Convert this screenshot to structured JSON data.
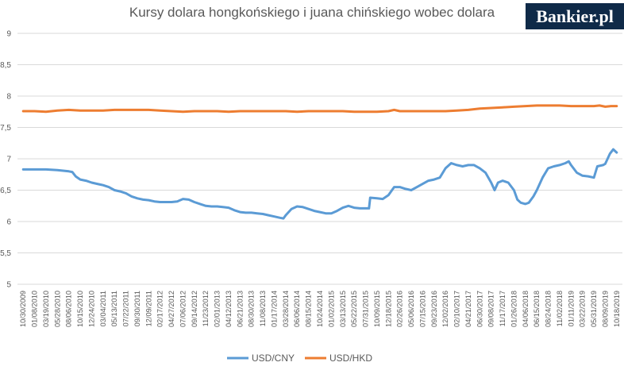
{
  "chart_data": {
    "type": "line",
    "title": "Kursy dolara hongkońskiego  i juana chińskiego wobec dolara",
    "xlabel": "",
    "ylabel": "",
    "ylim": [
      5,
      9
    ],
    "yticks": [
      "5",
      "5,5",
      "6",
      "6,5",
      "7",
      "7,5",
      "8",
      "8,5",
      "9"
    ],
    "grid": "horizontal",
    "legend": "bottom",
    "x_tick_labels": [
      "10/30/2009",
      "01/08/2010",
      "03/19/2010",
      "05/28/2010",
      "08/06/2010",
      "10/15/2010",
      "12/24/2010",
      "03/04/2011",
      "05/13/2011",
      "07/22/2011",
      "09/30/2011",
      "12/09/2011",
      "02/17/2012",
      "04/27/2012",
      "07/06/2012",
      "09/14/2012",
      "11/23/2012",
      "02/01/2013",
      "04/12/2013",
      "06/21/2013",
      "08/30/2013",
      "11/08/2013",
      "01/17/2014",
      "03/28/2014",
      "06/06/2014",
      "08/15/2014",
      "10/24/2014",
      "01/02/2015",
      "03/13/2015",
      "05/22/2015",
      "07/31/2015",
      "10/09/2015",
      "12/18/2015",
      "02/26/2016",
      "05/06/2016",
      "07/15/2016",
      "09/23/2016",
      "12/02/2016",
      "02/10/2017",
      "04/21/2017",
      "06/30/2017",
      "09/08/2017",
      "11/17/2017",
      "01/26/2018",
      "04/06/2018",
      "06/15/2018",
      "08/24/2018",
      "11/02/2018",
      "01/11/2019",
      "03/22/2019",
      "05/31/2019",
      "08/09/2019",
      "10/18/2019"
    ],
    "series": [
      {
        "name": "USD/CNY",
        "color": "#5b9bd5",
        "points": [
          [
            0,
            6.83
          ],
          [
            1,
            6.83
          ],
          [
            2,
            6.83
          ],
          [
            3,
            6.82
          ],
          [
            4,
            6.8
          ],
          [
            4.3,
            6.79
          ],
          [
            4.6,
            6.72
          ],
          [
            5,
            6.67
          ],
          [
            5.5,
            6.65
          ],
          [
            6,
            6.62
          ],
          [
            6.5,
            6.6
          ],
          [
            7,
            6.58
          ],
          [
            7.5,
            6.55
          ],
          [
            8,
            6.5
          ],
          [
            8.5,
            6.48
          ],
          [
            9,
            6.45
          ],
          [
            9.5,
            6.4
          ],
          [
            10,
            6.37
          ],
          [
            10.5,
            6.35
          ],
          [
            11,
            6.34
          ],
          [
            11.5,
            6.32
          ],
          [
            12,
            6.31
          ],
          [
            12.5,
            6.31
          ],
          [
            13,
            6.31
          ],
          [
            13.5,
            6.32
          ],
          [
            14,
            6.36
          ],
          [
            14.5,
            6.35
          ],
          [
            15,
            6.31
          ],
          [
            15.5,
            6.28
          ],
          [
            16,
            6.25
          ],
          [
            16.5,
            6.24
          ],
          [
            17,
            6.24
          ],
          [
            17.5,
            6.23
          ],
          [
            18,
            6.22
          ],
          [
            18.5,
            6.18
          ],
          [
            19,
            6.15
          ],
          [
            19.5,
            6.14
          ],
          [
            20,
            6.14
          ],
          [
            20.5,
            6.13
          ],
          [
            21,
            6.12
          ],
          [
            21.5,
            6.1
          ],
          [
            22,
            6.08
          ],
          [
            22.5,
            6.06
          ],
          [
            22.8,
            6.05
          ],
          [
            23,
            6.1
          ],
          [
            23.5,
            6.2
          ],
          [
            24,
            6.24
          ],
          [
            24.5,
            6.23
          ],
          [
            25,
            6.2
          ],
          [
            25.5,
            6.17
          ],
          [
            26,
            6.15
          ],
          [
            26.5,
            6.13
          ],
          [
            27,
            6.13
          ],
          [
            27.5,
            6.17
          ],
          [
            28,
            6.22
          ],
          [
            28.5,
            6.25
          ],
          [
            29,
            6.22
          ],
          [
            29.5,
            6.21
          ],
          [
            30,
            6.21
          ],
          [
            30.3,
            6.21
          ],
          [
            30.4,
            6.38
          ],
          [
            31,
            6.37
          ],
          [
            31.5,
            6.36
          ],
          [
            32,
            6.42
          ],
          [
            32.5,
            6.55
          ],
          [
            33,
            6.55
          ],
          [
            33.5,
            6.52
          ],
          [
            34,
            6.5
          ],
          [
            34.5,
            6.55
          ],
          [
            35,
            6.6
          ],
          [
            35.5,
            6.65
          ],
          [
            36,
            6.67
          ],
          [
            36.5,
            6.7
          ],
          [
            37,
            6.85
          ],
          [
            37.5,
            6.93
          ],
          [
            38,
            6.9
          ],
          [
            38.5,
            6.88
          ],
          [
            39,
            6.9
          ],
          [
            39.5,
            6.9
          ],
          [
            40,
            6.85
          ],
          [
            40.5,
            6.78
          ],
          [
            41,
            6.62
          ],
          [
            41.3,
            6.5
          ],
          [
            41.6,
            6.62
          ],
          [
            42,
            6.65
          ],
          [
            42.5,
            6.62
          ],
          [
            43,
            6.5
          ],
          [
            43.3,
            6.35
          ],
          [
            43.6,
            6.3
          ],
          [
            44,
            6.28
          ],
          [
            44.3,
            6.3
          ],
          [
            44.7,
            6.4
          ],
          [
            45,
            6.5
          ],
          [
            45.5,
            6.7
          ],
          [
            46,
            6.85
          ],
          [
            46.5,
            6.88
          ],
          [
            47,
            6.9
          ],
          [
            47.5,
            6.93
          ],
          [
            47.8,
            6.96
          ],
          [
            48,
            6.9
          ],
          [
            48.5,
            6.78
          ],
          [
            49,
            6.73
          ],
          [
            49.5,
            6.72
          ],
          [
            50,
            6.7
          ],
          [
            50.3,
            6.88
          ],
          [
            50.8,
            6.9
          ],
          [
            51,
            6.92
          ],
          [
            51.4,
            7.08
          ],
          [
            51.7,
            7.15
          ],
          [
            52,
            7.1
          ]
        ]
      },
      {
        "name": "USD/HKD",
        "color": "#ed7d31",
        "points": [
          [
            0,
            7.76
          ],
          [
            1,
            7.76
          ],
          [
            2,
            7.75
          ],
          [
            3,
            7.77
          ],
          [
            4,
            7.78
          ],
          [
            5,
            7.77
          ],
          [
            6,
            7.77
          ],
          [
            7,
            7.77
          ],
          [
            8,
            7.78
          ],
          [
            9,
            7.78
          ],
          [
            10,
            7.78
          ],
          [
            11,
            7.78
          ],
          [
            12,
            7.77
          ],
          [
            13,
            7.76
          ],
          [
            14,
            7.75
          ],
          [
            15,
            7.76
          ],
          [
            16,
            7.76
          ],
          [
            17,
            7.76
          ],
          [
            18,
            7.75
          ],
          [
            19,
            7.76
          ],
          [
            20,
            7.76
          ],
          [
            21,
            7.76
          ],
          [
            22,
            7.76
          ],
          [
            23,
            7.76
          ],
          [
            24,
            7.75
          ],
          [
            25,
            7.76
          ],
          [
            26,
            7.76
          ],
          [
            27,
            7.76
          ],
          [
            28,
            7.76
          ],
          [
            29,
            7.75
          ],
          [
            30,
            7.75
          ],
          [
            31,
            7.75
          ],
          [
            32,
            7.76
          ],
          [
            32.5,
            7.78
          ],
          [
            33,
            7.76
          ],
          [
            34,
            7.76
          ],
          [
            35,
            7.76
          ],
          [
            36,
            7.76
          ],
          [
            37,
            7.76
          ],
          [
            38,
            7.77
          ],
          [
            39,
            7.78
          ],
          [
            40,
            7.8
          ],
          [
            41,
            7.81
          ],
          [
            42,
            7.82
          ],
          [
            43,
            7.83
          ],
          [
            44,
            7.84
          ],
          [
            45,
            7.85
          ],
          [
            46,
            7.85
          ],
          [
            47,
            7.85
          ],
          [
            48,
            7.84
          ],
          [
            49,
            7.84
          ],
          [
            50,
            7.84
          ],
          [
            50.5,
            7.85
          ],
          [
            51,
            7.83
          ],
          [
            51.5,
            7.84
          ],
          [
            52,
            7.84
          ]
        ]
      }
    ]
  }
}
